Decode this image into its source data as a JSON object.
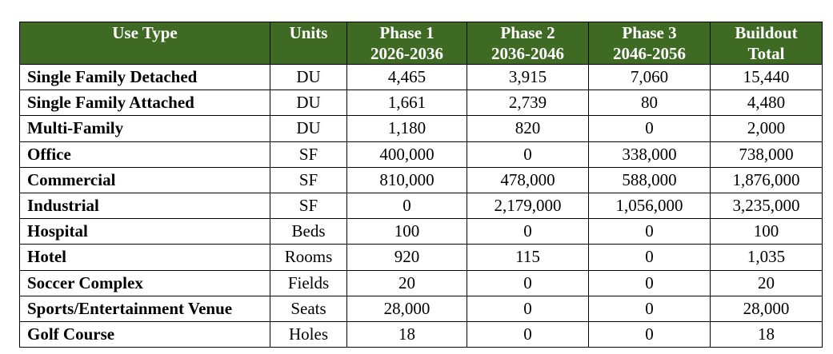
{
  "table": {
    "headers": [
      {
        "line1": "Use Type",
        "line2": ""
      },
      {
        "line1": "Units",
        "line2": ""
      },
      {
        "line1": "Phase 1",
        "line2": "2026-2036"
      },
      {
        "line1": "Phase 2",
        "line2": "2036-2046"
      },
      {
        "line1": "Phase 3",
        "line2": "2046-2056"
      },
      {
        "line1": "Buildout",
        "line2": "Total"
      }
    ],
    "rows": [
      [
        "Single Family Detached",
        "DU",
        "4,465",
        "3,915",
        "7,060",
        "15,440"
      ],
      [
        "Single Family Attached",
        "DU",
        "1,661",
        "2,739",
        "80",
        "4,480"
      ],
      [
        "Multi-Family",
        "DU",
        "1,180",
        "820",
        "0",
        "2,000"
      ],
      [
        "Office",
        "SF",
        "400,000",
        "0",
        "338,000",
        "738,000"
      ],
      [
        "Commercial",
        "SF",
        "810,000",
        "478,000",
        "588,000",
        "1,876,000"
      ],
      [
        "Industrial",
        "SF",
        "0",
        "2,179,000",
        "1,056,000",
        "3,235,000"
      ],
      [
        "Hospital",
        "Beds",
        "100",
        "0",
        "0",
        "100"
      ],
      [
        "Hotel",
        "Rooms",
        "920",
        "115",
        "0",
        "1,035"
      ],
      [
        "Soccer Complex",
        "Fields",
        "20",
        "0",
        "0",
        "20"
      ],
      [
        "Sports/Entertainment Venue",
        "Seats",
        "28,000",
        "0",
        "0",
        "28,000"
      ],
      [
        "Golf Course",
        "Holes",
        "18",
        "0",
        "0",
        "18"
      ]
    ]
  },
  "colors": {
    "header_bg": "#3f6a24",
    "header_text": "#ffffff",
    "border": "#000000"
  }
}
